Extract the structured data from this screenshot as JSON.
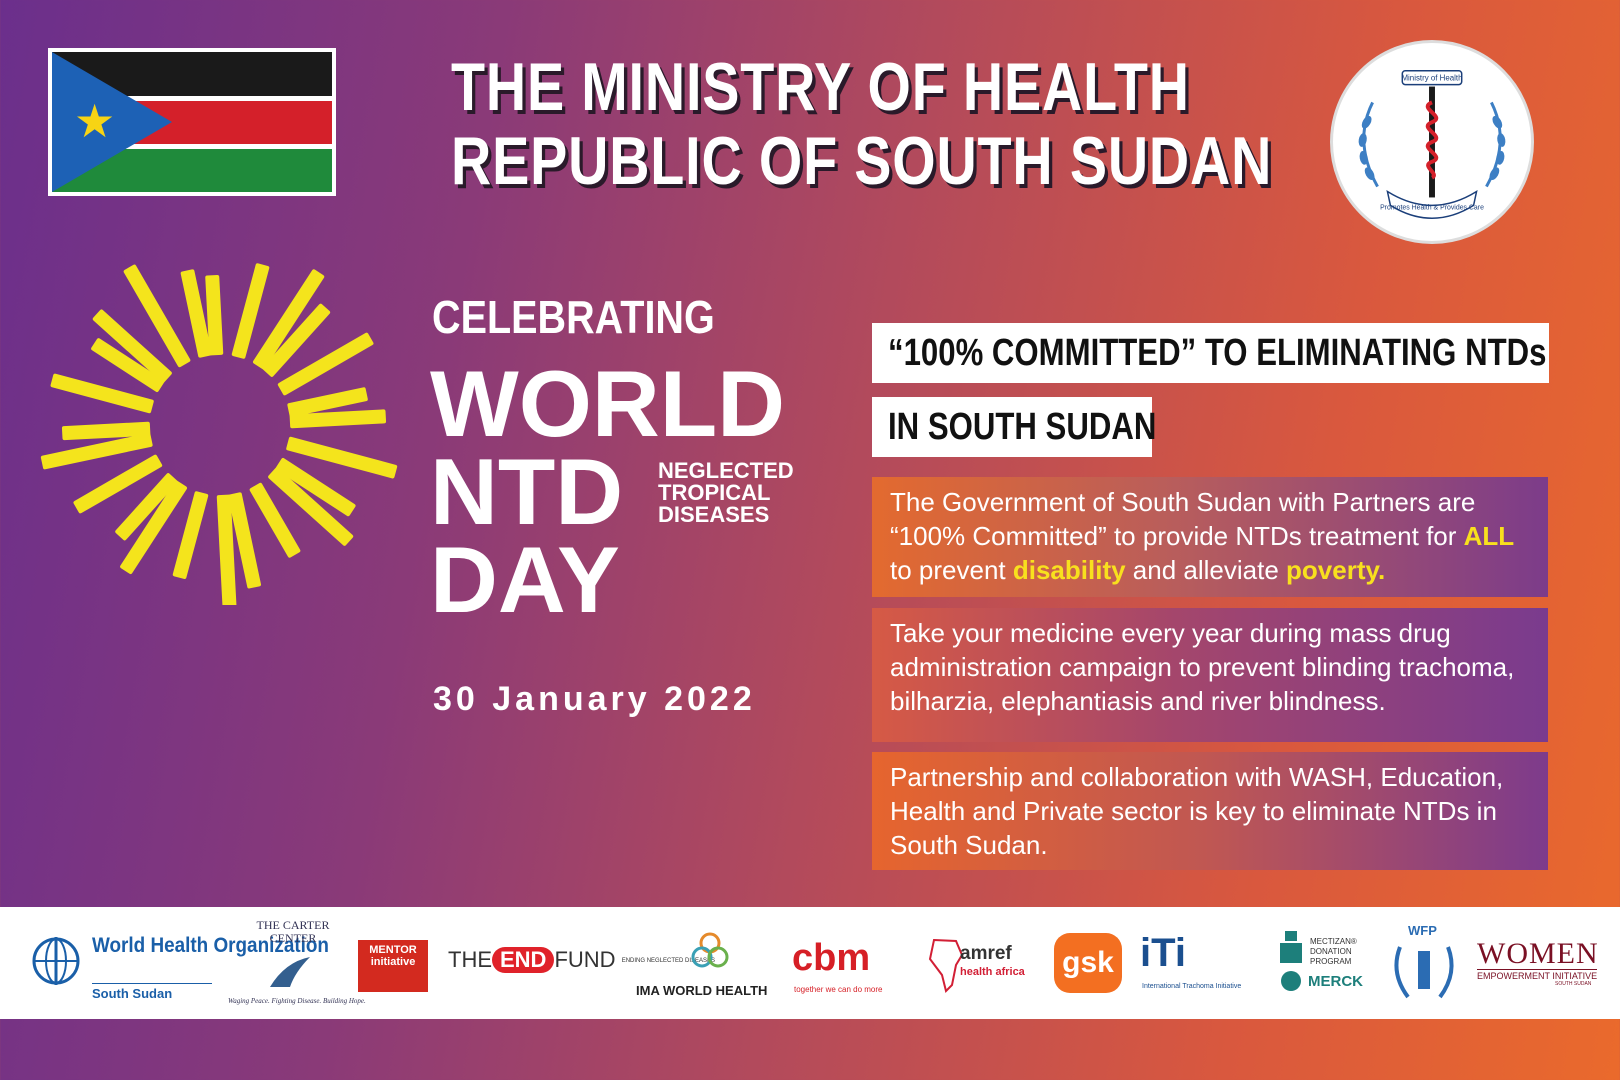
{
  "header": {
    "title_line1": "THE MINISTRY OF HEALTH",
    "title_line2": "REPUBLIC OF SOUTH SUDAN"
  },
  "seal": {
    "top_text": "Ministry of Health",
    "bottom_text": "Promotes Health & Provides Care"
  },
  "event": {
    "celebrating": "CELEBRATING",
    "line1": "WORLD",
    "line2": "NTD",
    "line3": "DAY",
    "ntd_expansion": [
      "NEGLECTED",
      "TROPICAL",
      "DISEASES"
    ],
    "date": "30 January 2022"
  },
  "commitment": {
    "line1": "“100% COMMITTED” TO ELIMINATING NTDs",
    "line2": "IN SOUTH SUDAN"
  },
  "panels": {
    "p1": {
      "a": "The Government of South Sudan with Partners are “100% Committed” to provide NTDs treatment for ",
      "b": "ALL",
      "c": " to prevent ",
      "d": "disability",
      "e": " and alleviate ",
      "f": "poverty."
    },
    "p2": "Take your medicine every year during mass drug administration campaign to prevent blinding trachoma, bilharzia, elephantiasis and river blindness.",
    "p3": "Partnership and collaboration with WASH, Education, Health and Private sector is key to eliminate NTDs in South Sudan."
  },
  "partners": {
    "who_title": "World Health Organization",
    "who_sub": "South Sudan",
    "carter": "THE CARTER CENTER",
    "carter_sub": "Waging Peace. Fighting Disease. Building Hope.",
    "mentor": "MENTOR initiative",
    "end_fund_the": "THE",
    "end_fund_end": "END",
    "end_fund_fund": "FUND",
    "end_fund_sub": "ENDING NEGLECTED DISEASES",
    "ima": "IMA WORLD HEALTH",
    "cbm": "cbm",
    "cbm_sub": "together we can do more",
    "amref": "amref",
    "amref_sub": "health africa",
    "gsk": "gsk",
    "iti": "iTi",
    "iti_sub": "International Trachoma Initiative",
    "mectizan": "MECTIZAN® DONATION PROGRAM",
    "merck": "MERCK",
    "wfp": "WFP",
    "women": "WOMEN",
    "women_sub": "EMPOWERMENT INITIATIVE",
    "women_sub2": "SOUTH SUDAN"
  },
  "colors": {
    "accent_yellow": "#f8e01e",
    "bg_purple": "#6b2f8c",
    "bg_orange": "#ea6a2c"
  },
  "icons": [
    "south-sudan-flag",
    "ministry-seal-caduceus",
    "sun-rays-logo"
  ]
}
